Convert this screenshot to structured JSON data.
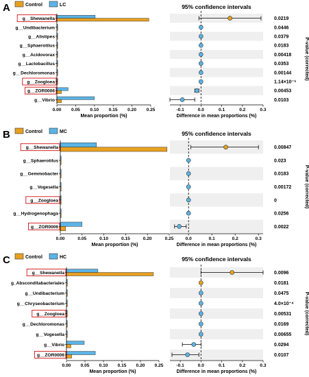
{
  "figure": {
    "common": {
      "ci_title": "95% confidence intervals",
      "xlabel_left": "Mean proportion (%)",
      "xlabel_right": "Difference in mean proportions (%)",
      "ylabel_right": "P-value (corrected)",
      "control_label": "Control",
      "colors": {
        "control": "#E8A020",
        "treatment": "#5BB4E5",
        "stripe": "#EFEFEF",
        "highlight_box": "#D62728"
      }
    }
  },
  "chart_data": [
    {
      "panel": "A",
      "type": "bar",
      "orientation": "horizontal",
      "legend": [
        "Control",
        "LC"
      ],
      "categories": [
        "g__Shewanella",
        "g__Undibacterium",
        "g__Alistipes",
        "g__Sphaerotilus",
        "g__Acidovorax",
        "g__Lactobacillus",
        "g__Dechloromonas",
        "g__Zoogloea",
        "g__ZOR0006",
        "g__Vibrio"
      ],
      "highlighted": [
        "g__Shewanella",
        "g__Zoogloea",
        "g__ZOR0006"
      ],
      "series": [
        {
          "name": "Control",
          "values": [
            0.245,
            0.001,
            0.001,
            0.001,
            0.001,
            0.001,
            0.001,
            0.001,
            0.012,
            0.012
          ]
        },
        {
          "name": "LC",
          "values": [
            0.102,
            0.001,
            0.001,
            0.001,
            0.001,
            0.001,
            0.002,
            0.001,
            0.03,
            0.1
          ]
        }
      ],
      "xlim": [
        0,
        0.25
      ],
      "xticks": [
        "0.00",
        "0.05",
        "0.10",
        "0.15",
        "0.20",
        "0.25"
      ],
      "ci": {
        "xlim": [
          -0.15,
          0.3
        ],
        "xticks": [
          "-0.1",
          "0.0",
          "0.1",
          "0.2",
          "0.3"
        ],
        "diff": [
          0.14,
          0.0,
          0.0,
          0.0,
          0.0,
          0.0,
          0.0,
          0.0,
          -0.02,
          -0.09
        ],
        "lower": [
          -0.01,
          -0.003,
          -0.003,
          -0.003,
          -0.003,
          -0.003,
          -0.003,
          -0.003,
          -0.03,
          -0.15
        ],
        "upper": [
          0.29,
          0.003,
          0.003,
          0.003,
          0.003,
          0.003,
          0.003,
          0.003,
          -0.01,
          -0.03
        ],
        "marker_color": [
          "control",
          "treatment",
          "treatment",
          "treatment",
          "treatment",
          "treatment",
          "treatment",
          "treatment",
          "treatment",
          "treatment"
        ]
      },
      "pvalues": [
        "0.0219",
        "0.0446",
        "0.0379",
        "0.0183",
        "0.00418",
        "0.0353",
        "0.00144",
        "1.14×10⁻⁵",
        "0.00453",
        "0.0103"
      ]
    },
    {
      "panel": "B",
      "type": "bar",
      "orientation": "horizontal",
      "legend": [
        "Control",
        "MC"
      ],
      "categories": [
        "g__Shewanella",
        "g__Sphaerotilus",
        "g__Gemmobacter",
        "g__Vogesella",
        "g__Zoogloea",
        "g__Hydrogenophaga",
        "g__ZOR0006"
      ],
      "highlighted": [
        "g__Shewanella",
        "g__Zoogloea",
        "g__ZOR0006"
      ],
      "series": [
        {
          "name": "Control",
          "values": [
            0.245,
            0.001,
            0.001,
            0.001,
            0.001,
            0.002,
            0.012
          ]
        },
        {
          "name": "MC",
          "values": [
            0.083,
            0.001,
            0.001,
            0.001,
            0.001,
            0.002,
            0.05
          ]
        }
      ],
      "xlim": [
        0,
        0.25
      ],
      "xticks": [
        "0.00",
        "0.05",
        "0.10",
        "0.15",
        "0.20",
        "0.25"
      ],
      "ci": {
        "xlim": [
          -0.08,
          0.32
        ],
        "xticks": [
          "0.0",
          "0.1",
          "0.2",
          "0.3"
        ],
        "diff": [
          0.16,
          0.0,
          0.0,
          0.0,
          0.0,
          0.0,
          -0.04
        ],
        "lower": [
          0.01,
          -0.003,
          -0.003,
          -0.003,
          -0.003,
          -0.003,
          -0.06
        ],
        "upper": [
          0.3,
          0.003,
          0.003,
          0.003,
          0.003,
          0.003,
          -0.01
        ],
        "marker_color": [
          "control",
          "treatment",
          "treatment",
          "treatment",
          "treatment",
          "treatment",
          "treatment"
        ]
      },
      "pvalues": [
        "0.00847",
        "0.023",
        "0.0183",
        "0.00172",
        "0",
        "0.0256",
        "0.0022"
      ]
    },
    {
      "panel": "C",
      "type": "bar",
      "orientation": "horizontal",
      "legend": [
        "Control",
        "HC"
      ],
      "categories": [
        "g__Shewanella",
        "g_Absconditabacteriales",
        "g__Undibacterium",
        "g__Chryseobacterium",
        "g__Zoogloea",
        "g__Dechloromonas",
        "g__Vogesella",
        "g__Vibrio",
        "g__ZOR0006"
      ],
      "highlighted": [
        "g__Shewanella",
        "g__Zoogloea",
        "g__ZOR0006"
      ],
      "series": [
        {
          "name": "Control",
          "values": [
            0.235,
            0.001,
            0.001,
            0.001,
            0.001,
            0.001,
            0.001,
            0.012,
            0.014
          ]
        },
        {
          "name": "HC",
          "values": [
            0.085,
            0.001,
            0.001,
            0.001,
            0.001,
            0.001,
            0.001,
            0.048,
            0.078
          ]
        }
      ],
      "xlim": [
        0,
        0.25
      ],
      "xticks": [
        "0.00",
        "0.05",
        "0.10",
        "0.15",
        "0.20",
        "0.25"
      ],
      "ci": {
        "xlim": [
          -0.15,
          0.3
        ],
        "xticks": [
          "-0.1",
          "0.0",
          "0.1",
          "0.2",
          "0.3"
        ],
        "diff": [
          0.15,
          0.0,
          0.0,
          0.0,
          0.0,
          0.0,
          0.0,
          -0.035,
          -0.065
        ],
        "lower": [
          0.0,
          -0.003,
          -0.003,
          -0.003,
          -0.003,
          -0.003,
          -0.003,
          -0.09,
          -0.14
        ],
        "upper": [
          0.3,
          0.003,
          0.003,
          0.003,
          0.003,
          0.003,
          0.003,
          0.0,
          -0.01
        ],
        "marker_color": [
          "control",
          "control",
          "treatment",
          "treatment",
          "treatment",
          "treatment",
          "treatment",
          "treatment",
          "treatment"
        ]
      },
      "pvalues": [
        "0.0096",
        "0.0181",
        "0.0475",
        "4.0×10⁻⁴",
        "0.00531",
        "0.0169",
        "0.00655",
        "0.0294",
        "0.0107"
      ]
    }
  ]
}
